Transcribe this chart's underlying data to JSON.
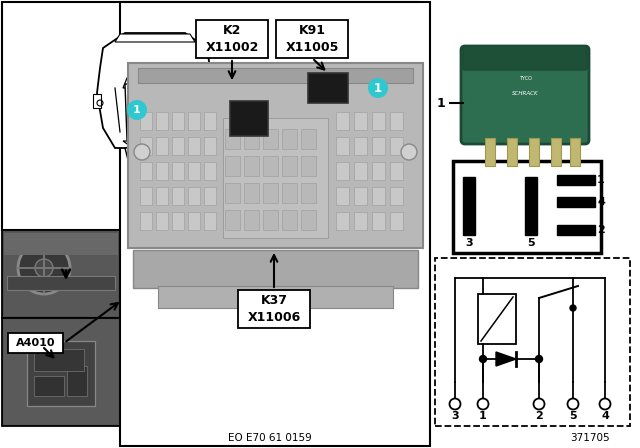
{
  "bg_color": "#ffffff",
  "teal_color": "#2ec8d0",
  "footnote_left": "EO E70 61 0159",
  "footnote_right": "371705",
  "k2_lines": [
    "K2",
    "X11002"
  ],
  "k91_lines": [
    "K91",
    "X11005"
  ],
  "k37_lines": [
    "K37",
    "X11006"
  ],
  "a4010": "A4010",
  "relay_label": "1",
  "car_panel_border": "#333333",
  "fuse_box_bg": "#b0b0b0",
  "fuse_box_dark": "#888888",
  "relay_dark": "#1a1a1a",
  "green_relay": "#2d6e50",
  "silver_pin": "#b8b890",
  "interior_bg": "#606060",
  "interior_dark": "#404040",
  "pin_diagram_border": "#000000",
  "circuit_border": "#000000"
}
